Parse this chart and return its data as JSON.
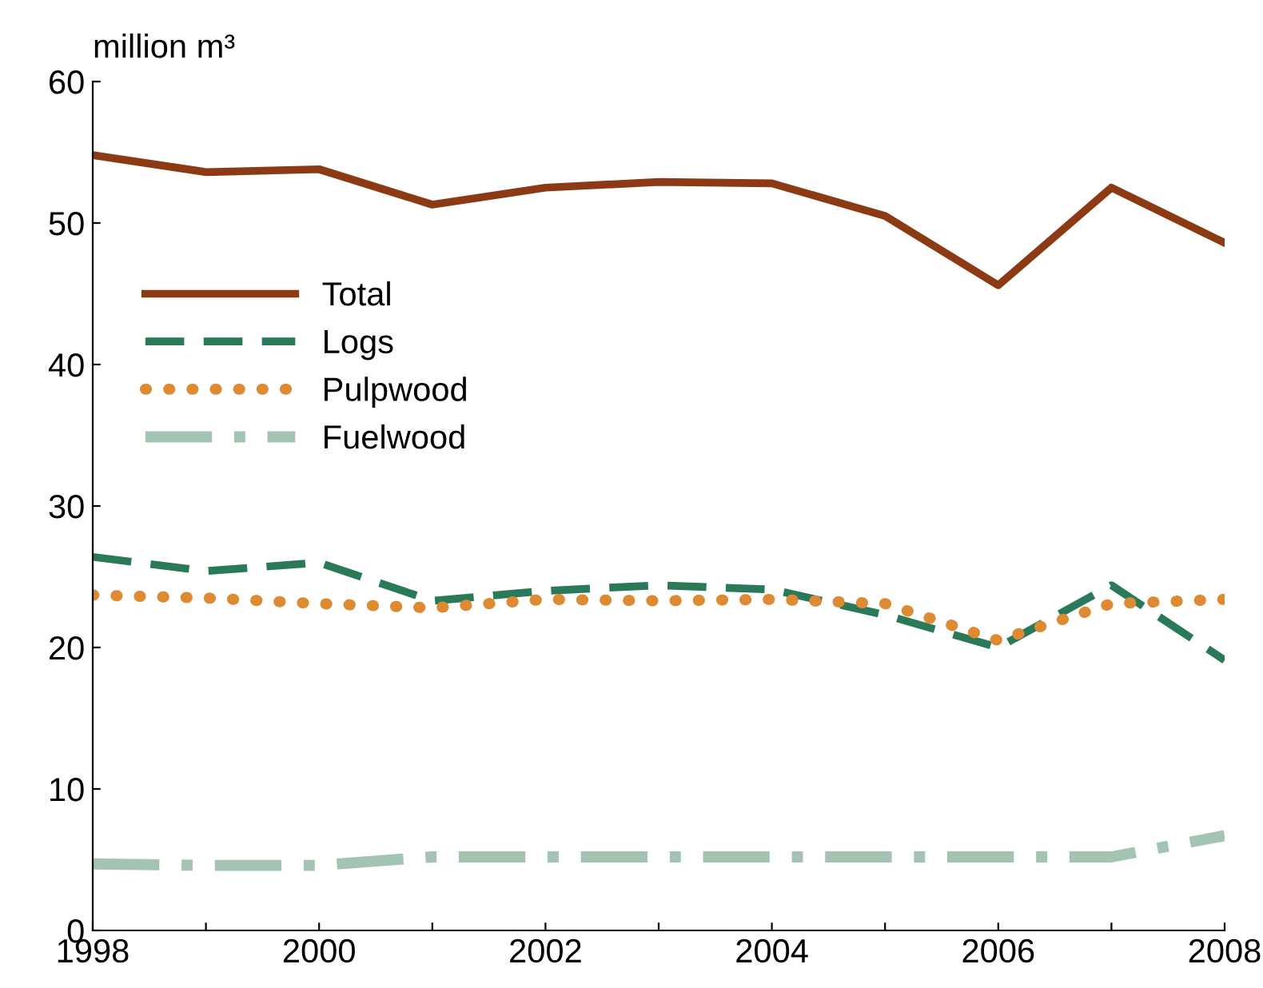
{
  "chart_data": {
    "type": "line",
    "ylabel": "million m³",
    "x": [
      1998,
      1999,
      2000,
      2001,
      2002,
      2003,
      2004,
      2005,
      2006,
      2007,
      2008
    ],
    "xlim": [
      1998,
      2008
    ],
    "ylim": [
      0,
      60
    ],
    "xticks": [
      1998,
      {
        "value": 1999,
        "label": null
      },
      2000,
      {
        "value": 2001,
        "label": null
      },
      2002,
      {
        "value": 2003,
        "label": null
      },
      2004,
      {
        "value": 2005,
        "label": null
      },
      2006,
      {
        "value": 2007,
        "label": null
      },
      2008
    ],
    "yticks": [
      0,
      10,
      20,
      30,
      40,
      50,
      60
    ],
    "grid": false,
    "legend": "top left",
    "marker": "none",
    "series": [
      {
        "name": "Total",
        "color": "#8b3a14",
        "line_style": "solid",
        "values": [
          54.8,
          53.6,
          53.8,
          51.3,
          52.5,
          52.9,
          52.8,
          50.5,
          45.6,
          52.5,
          48.6
        ]
      },
      {
        "name": "Logs",
        "color": "#2a7a5a",
        "line_style": "dashed",
        "values": [
          26.4,
          25.4,
          26.0,
          23.3,
          24.0,
          24.4,
          24.1,
          22.3,
          20.0,
          24.4,
          19.1
        ]
      },
      {
        "name": "Pulpwood",
        "color": "#dd8a32",
        "line_style": "dotted",
        "values": [
          23.7,
          23.5,
          23.1,
          22.8,
          23.4,
          23.3,
          23.4,
          23.1,
          20.5,
          23.1,
          23.4
        ]
      },
      {
        "name": "Fuelwood",
        "color": "#a3c4b3",
        "line_style": "dashdot",
        "values": [
          4.7,
          4.6,
          4.6,
          5.2,
          5.2,
          5.2,
          5.2,
          5.2,
          5.2,
          5.2,
          6.7
        ]
      }
    ]
  }
}
